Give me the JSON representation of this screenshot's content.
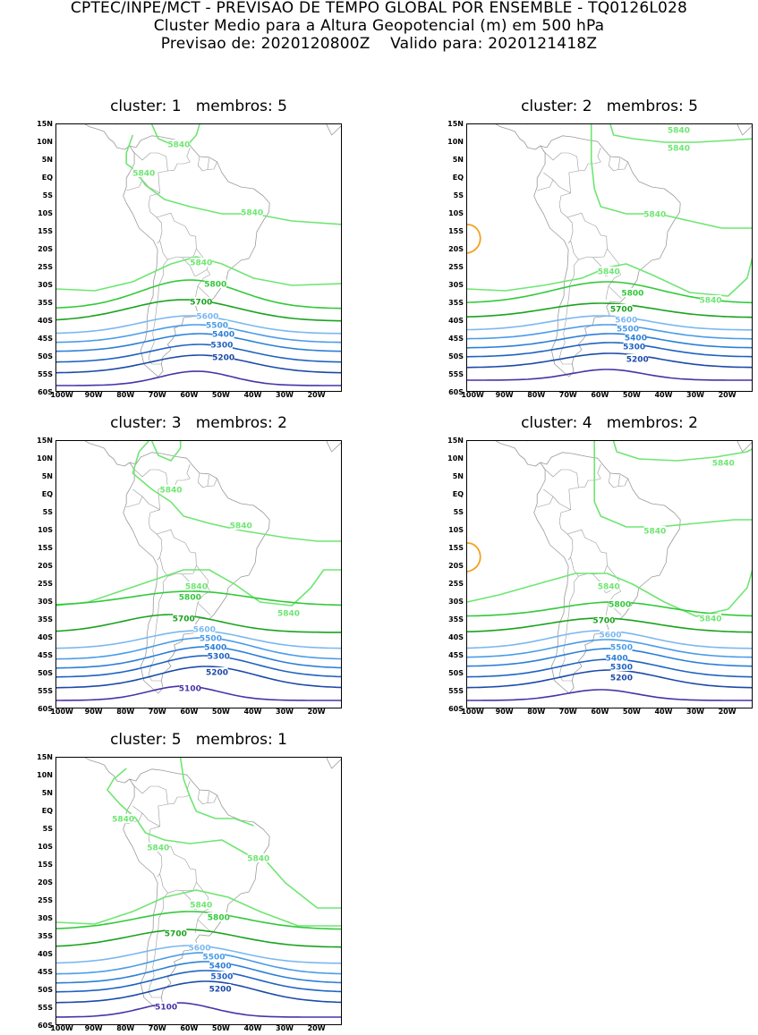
{
  "header": {
    "line1": "CPTEC/INPE/MCT - PREVISAO DE TEMPO GLOBAL POR ENSEMBLE - TQ0126L028",
    "line2": "Cluster Medio para a Altura Geopotencial (m) em 500 hPa",
    "line3": "Previsao de: 2020120800Z    Valido para: 2020121418Z"
  },
  "lat_ticks": [
    "15N",
    "10N",
    "5N",
    "EQ",
    "5S",
    "10S",
    "15S",
    "20S",
    "25S",
    "30S",
    "35S",
    "40S",
    "45S",
    "50S",
    "55S",
    "60S"
  ],
  "lon_ticks": [
    "100W",
    "90W",
    "80W",
    "70W",
    "60W",
    "50W",
    "40W",
    "30W",
    "20W"
  ],
  "level_colors": {
    "5840": "#6ee672",
    "5800": "#33c93a",
    "5700": "#1aa31e",
    "5600": "#7ab8f0",
    "5500": "#4a9ce8",
    "5400": "#2c7fd8",
    "5300": "#1f62c2",
    "5200": "#1c4aa8",
    "5100": "#4a32a8",
    "warm": "#f2a01e",
    "land": "#9a9a9a"
  },
  "panels": [
    {
      "title": "cluster: 1   membros: 5",
      "labels": [
        {
          "text": "5840",
          "lon": -63.5,
          "lat": 9.5,
          "lvl": "5840"
        },
        {
          "text": "5840",
          "lon": -74.5,
          "lat": 1.5,
          "lvl": "5840"
        },
        {
          "text": "5840",
          "lon": -40.5,
          "lat": -9.5,
          "lvl": "5840"
        },
        {
          "text": "5840",
          "lon": -56.5,
          "lat": -23.5,
          "lvl": "5840"
        },
        {
          "text": "5800",
          "lon": -52,
          "lat": -29.5,
          "lvl": "5800"
        },
        {
          "text": "5700",
          "lon": -56.5,
          "lat": -34.5,
          "lvl": "5700"
        },
        {
          "text": "5600",
          "lon": -54.5,
          "lat": -38.5,
          "lvl": "5600"
        },
        {
          "text": "5500",
          "lon": -51.5,
          "lat": -41,
          "lvl": "5500"
        },
        {
          "text": "5400",
          "lon": -49.5,
          "lat": -43.5,
          "lvl": "5400"
        },
        {
          "text": "5300",
          "lon": -50,
          "lat": -46.5,
          "lvl": "5300"
        },
        {
          "text": "5200",
          "lon": -49.5,
          "lat": -50,
          "lvl": "5200"
        }
      ]
    },
    {
      "title": "cluster: 2   membros: 5",
      "labels": [
        {
          "text": "5840",
          "lon": -35.5,
          "lat": 13.5,
          "lvl": "5840"
        },
        {
          "text": "5840",
          "lon": -35.5,
          "lat": 8.5,
          "lvl": "5840"
        },
        {
          "text": "5840",
          "lon": -43,
          "lat": -10,
          "lvl": "5840"
        },
        {
          "text": "5840",
          "lon": -57.5,
          "lat": -26,
          "lvl": "5840"
        },
        {
          "text": "5840",
          "lon": -25.5,
          "lat": -34,
          "lvl": "5840"
        },
        {
          "text": "5800",
          "lon": -50,
          "lat": -32,
          "lvl": "5800"
        },
        {
          "text": "5700",
          "lon": -53.5,
          "lat": -36.5,
          "lvl": "5700"
        },
        {
          "text": "5600",
          "lon": -52,
          "lat": -39.5,
          "lvl": "5600"
        },
        {
          "text": "5500",
          "lon": -51.5,
          "lat": -42,
          "lvl": "5500"
        },
        {
          "text": "5400",
          "lon": -49,
          "lat": -44.5,
          "lvl": "5400"
        },
        {
          "text": "5300",
          "lon": -49.5,
          "lat": -47,
          "lvl": "5300"
        },
        {
          "text": "5200",
          "lon": -48.5,
          "lat": -50.5,
          "lvl": "5200"
        }
      ]
    },
    {
      "title": "cluster: 3   membros: 2",
      "labels": [
        {
          "text": "5840",
          "lon": -66,
          "lat": 1.5,
          "lvl": "5840"
        },
        {
          "text": "5840",
          "lon": -44,
          "lat": -8.5,
          "lvl": "5840"
        },
        {
          "text": "5840",
          "lon": -58,
          "lat": -25.5,
          "lvl": "5840"
        },
        {
          "text": "5840",
          "lon": -29,
          "lat": -33,
          "lvl": "5840"
        },
        {
          "text": "5800",
          "lon": -60,
          "lat": -28.5,
          "lvl": "5800"
        },
        {
          "text": "5700",
          "lon": -62,
          "lat": -34.5,
          "lvl": "5700"
        },
        {
          "text": "5600",
          "lon": -55.5,
          "lat": -37.5,
          "lvl": "5600"
        },
        {
          "text": "5500",
          "lon": -53.5,
          "lat": -40,
          "lvl": "5500"
        },
        {
          "text": "5400",
          "lon": -52,
          "lat": -42.5,
          "lvl": "5400"
        },
        {
          "text": "5300",
          "lon": -51,
          "lat": -45,
          "lvl": "5300"
        },
        {
          "text": "5200",
          "lon": -51.5,
          "lat": -49.5,
          "lvl": "5200"
        },
        {
          "text": "5100",
          "lon": -60,
          "lat": -54,
          "lvl": "5100"
        }
      ]
    },
    {
      "title": "cluster: 4   membros: 2",
      "labels": [
        {
          "text": "5840",
          "lon": -21.5,
          "lat": 9,
          "lvl": "5840"
        },
        {
          "text": "5840",
          "lon": -43,
          "lat": -10,
          "lvl": "5840"
        },
        {
          "text": "5840",
          "lon": -57.5,
          "lat": -25.5,
          "lvl": "5840"
        },
        {
          "text": "5840",
          "lon": -25.5,
          "lat": -34.5,
          "lvl": "5840"
        },
        {
          "text": "5800",
          "lon": -54,
          "lat": -30.5,
          "lvl": "5800"
        },
        {
          "text": "5700",
          "lon": -59,
          "lat": -35,
          "lvl": "5700"
        },
        {
          "text": "5600",
          "lon": -57,
          "lat": -39,
          "lvl": "5600"
        },
        {
          "text": "5500",
          "lon": -53.5,
          "lat": -42.5,
          "lvl": "5500"
        },
        {
          "text": "5400",
          "lon": -55,
          "lat": -45.5,
          "lvl": "5400"
        },
        {
          "text": "5300",
          "lon": -53.5,
          "lat": -48,
          "lvl": "5300"
        },
        {
          "text": "5200",
          "lon": -53.5,
          "lat": -51,
          "lvl": "5200"
        }
      ]
    },
    {
      "title": "cluster: 5   membros: 1",
      "labels": [
        {
          "text": "5840",
          "lon": -81,
          "lat": -2,
          "lvl": "5840"
        },
        {
          "text": "5840",
          "lon": -70,
          "lat": -10,
          "lvl": "5840"
        },
        {
          "text": "5840",
          "lon": -38.5,
          "lat": -13,
          "lvl": "5840"
        },
        {
          "text": "5840",
          "lon": -56.5,
          "lat": -26,
          "lvl": "5840"
        },
        {
          "text": "5800",
          "lon": -51,
          "lat": -29.5,
          "lvl": "5800"
        },
        {
          "text": "5700",
          "lon": -64.5,
          "lat": -34,
          "lvl": "5700"
        },
        {
          "text": "5600",
          "lon": -57,
          "lat": -38,
          "lvl": "5600"
        },
        {
          "text": "5500",
          "lon": -52.5,
          "lat": -40.5,
          "lvl": "5500"
        },
        {
          "text": "5400",
          "lon": -50.5,
          "lat": -43,
          "lvl": "5400"
        },
        {
          "text": "5300",
          "lon": -50,
          "lat": -46,
          "lvl": "5300"
        },
        {
          "text": "5200",
          "lon": -50.5,
          "lat": -49.5,
          "lvl": "5200"
        },
        {
          "text": "5100",
          "lon": -67.5,
          "lat": -54.5,
          "lvl": "5100"
        }
      ]
    }
  ]
}
